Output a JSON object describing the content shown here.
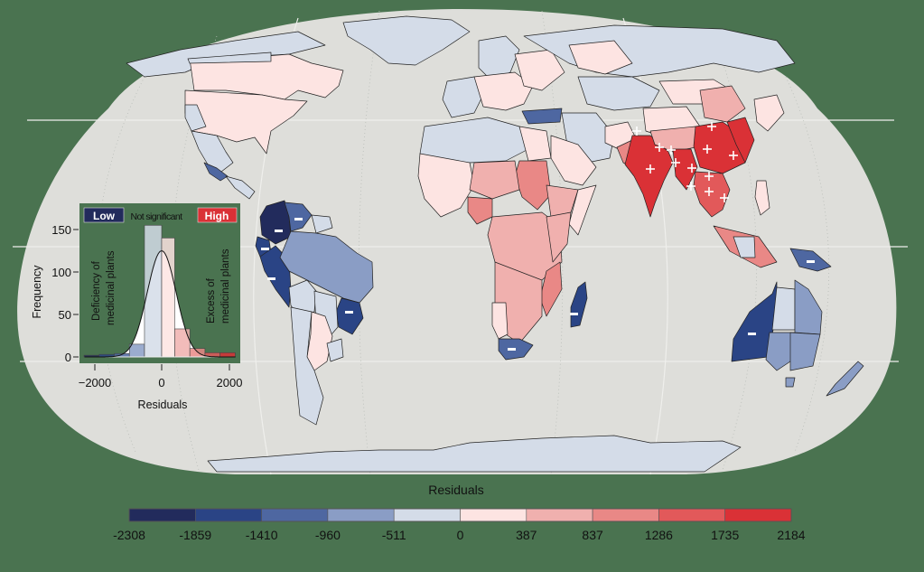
{
  "figure": {
    "background_color": "#4a7350",
    "ocean_color": "#dededa",
    "graticule_color": "#efefec",
    "border_color": "#1a1a1a"
  },
  "legend": {
    "title": "Residuals",
    "breaks": [
      "-2308",
      "-1859",
      "-1410",
      "-960",
      "-511",
      "0",
      "387",
      "837",
      "1286",
      "1735",
      "2184"
    ],
    "colors": [
      "#222b5c",
      "#2a4485",
      "#4e67a1",
      "#8a9dc5",
      "#d4dce8",
      "#fde4e2",
      "#f0b0ae",
      "#e98886",
      "#e2595a",
      "#da3136"
    ]
  },
  "inset": {
    "badge_low": "Low",
    "badge_mid": "Not significant",
    "badge_high": "High",
    "badge_low_color": "#222b5c",
    "badge_high_color": "#da3136",
    "left_annotation_line1": "Deficiency of",
    "left_annotation_line2": "medicinal plants",
    "right_annotation_line1": "Excess of",
    "right_annotation_line2": "medicinal plants",
    "ylabel": "Frequency",
    "xlabel": "Residuals",
    "yticks": [
      "0",
      "50",
      "100",
      "150"
    ],
    "xticks": [
      "−2000",
      "0",
      "2000"
    ]
  },
  "chart_data": {
    "type": "histogram",
    "title": "",
    "xlabel": "Residuals",
    "ylabel": "Frequency",
    "bins": [
      -2308,
      -1859,
      -1410,
      -960,
      -511,
      0,
      387,
      837,
      1286,
      1735,
      2184
    ],
    "values": [
      2,
      3,
      4,
      15,
      155,
      140,
      33,
      10,
      5,
      5
    ],
    "overlay": "normal density curve, peak ~125 at residual 0",
    "xlim": [
      -2300,
      2200
    ],
    "ylim": [
      0,
      160
    ],
    "categories_legend": [
      "Low",
      "Not significant",
      "High"
    ]
  },
  "map": {
    "significant_high_marker": "+",
    "significant_low_marker": "−",
    "high_marker_count": 13,
    "low_marker_count": 10
  }
}
